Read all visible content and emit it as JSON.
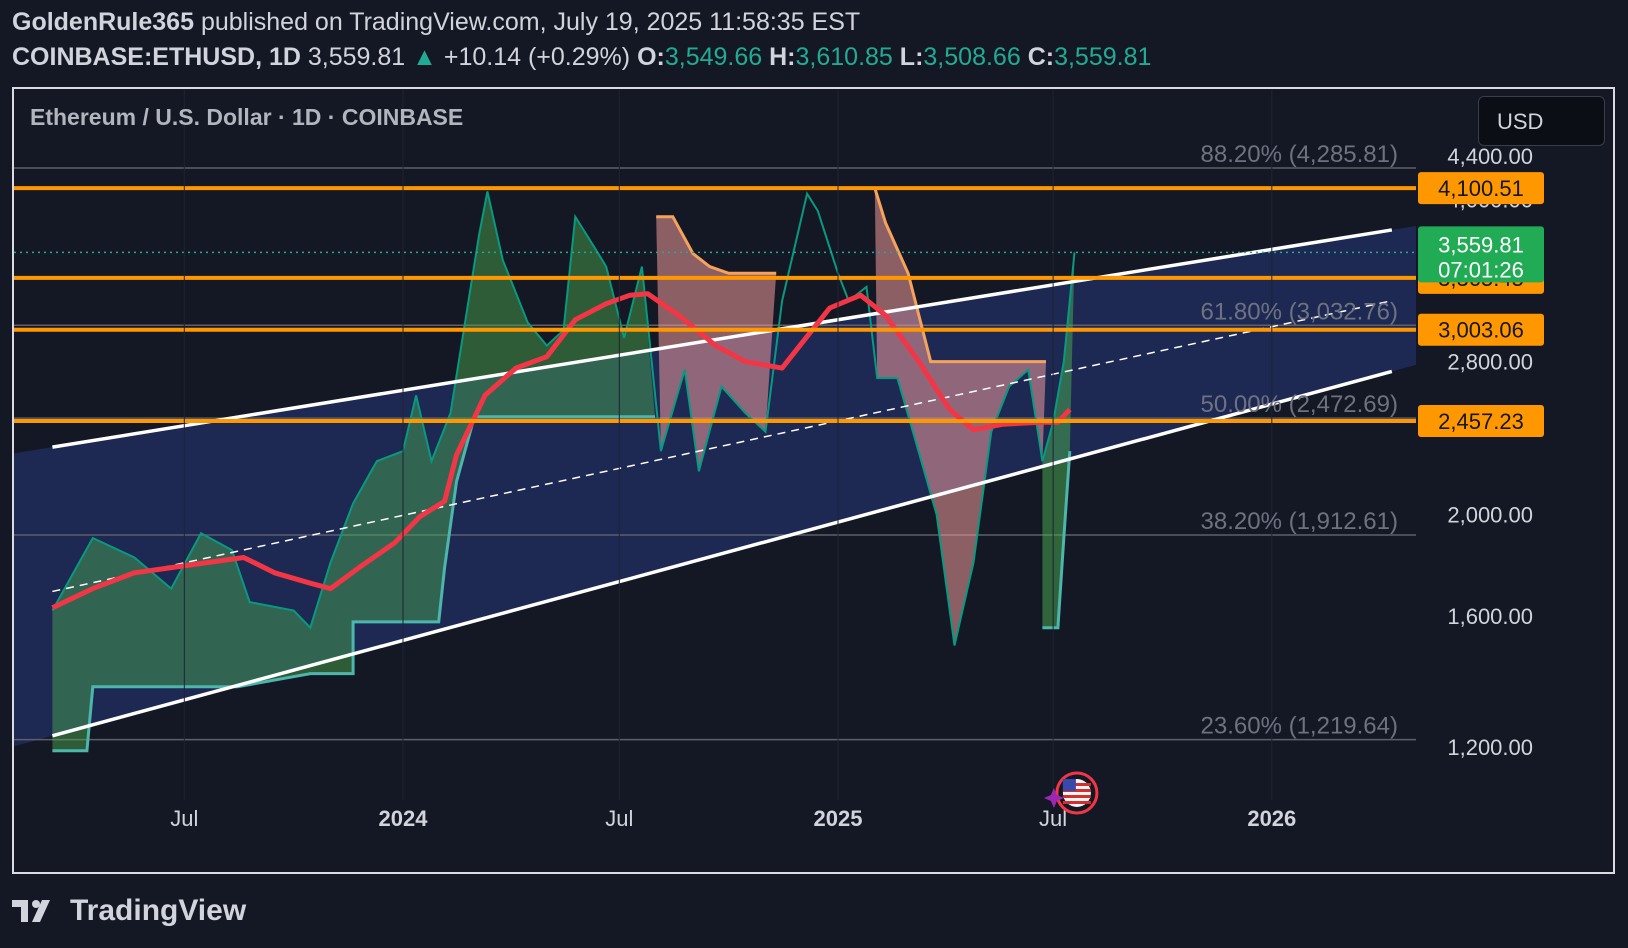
{
  "header": {
    "author": "GoldenRule365",
    "published": "published on TradingView.com, July 19, 2025 11:58:35 EST",
    "symbol": "COINBASE:ETHUSD, 1D",
    "last": "3,559.81",
    "change": "+10.14 (+0.29%)",
    "o_label": "O:",
    "o": "3,549.66",
    "h_label": "H:",
    "h": "3,610.85",
    "l_label": "L:",
    "l": "3,508.66",
    "c_label": "C:",
    "c": "3,559.81"
  },
  "chart_title": "Ethereum / U.S. Dollar · 1D · COINBASE",
  "currency_button": "USD",
  "footer": {
    "brand": "TradingView",
    "logo_icon": "tradingview-logo-icon"
  },
  "colors": {
    "background": "#141824",
    "horizontal_levels": "#ff9800",
    "channel_fill": "#1e2d5c",
    "channel_lines": "#ffffff",
    "moving_average": "#f23645",
    "supertrend_up": "#4caf50",
    "supertrend_down": "#ef9a9a",
    "candle_up": "#089981",
    "candle_down": "#f23645"
  },
  "chart_data": {
    "type": "line",
    "x_ticks": [
      {
        "label": "Jul",
        "bold": false,
        "date": "2023-07-01"
      },
      {
        "label": "2024",
        "bold": true,
        "date": "2024-01-01"
      },
      {
        "label": "Jul",
        "bold": false,
        "date": "2024-07-01"
      },
      {
        "label": "2025",
        "bold": true,
        "date": "2025-01-01"
      },
      {
        "label": "Jul",
        "bold": false,
        "date": "2025-07-01"
      },
      {
        "label": "2026",
        "bold": true,
        "date": "2026-01-01"
      }
    ],
    "y_scale": "log",
    "y_ticks": [
      "4,400.00",
      "4,000.00",
      "2,800.00",
      "2,000.00",
      "1,600.00",
      "1,200.00"
    ],
    "y_tick_values": [
      4400,
      4000,
      2800,
      2000,
      1600,
      1200
    ],
    "fib_levels": [
      {
        "label": "88.20% (4,285.81)",
        "value": 4285.81
      },
      {
        "label": "61.80% (3,032.76)",
        "value": 3032.76
      },
      {
        "label": "50.00% (2,472.69)",
        "value": 2472.69
      },
      {
        "label": "38.20% (1,912.61)",
        "value": 1912.61
      },
      {
        "label": "23.60% (1,219.64)",
        "value": 1219.64
      }
    ],
    "horizontal_levels": [
      {
        "label": "4,100.51",
        "value": 4100.51
      },
      {
        "label": "3,365.45",
        "value": 3365.45
      },
      {
        "label": "3,003.06",
        "value": 3003.06
      },
      {
        "label": "2,457.23",
        "value": 2457.23
      }
    ],
    "last_price": {
      "label": "3,559.81",
      "countdown": "07:01:26",
      "value": 3559.81
    },
    "channel": {
      "upper": [
        {
          "date": "2023-03-12",
          "value": 2320
        },
        {
          "date": "2026-04-12",
          "value": 3740
        }
      ],
      "lower": [
        {
          "date": "2023-03-12",
          "value": 1230
        },
        {
          "date": "2026-04-12",
          "value": 2740
        }
      ]
    },
    "series": [
      {
        "label": "price",
        "points": [
          [
            "2023-03-12",
            1620
          ],
          [
            "2023-04-15",
            1900
          ],
          [
            "2023-05-20",
            1820
          ],
          [
            "2023-06-20",
            1700
          ],
          [
            "2023-07-15",
            1920
          ],
          [
            "2023-08-10",
            1850
          ],
          [
            "2023-08-25",
            1650
          ],
          [
            "2023-10-01",
            1620
          ],
          [
            "2023-10-15",
            1560
          ],
          [
            "2023-11-01",
            1800
          ],
          [
            "2023-11-20",
            2050
          ],
          [
            "2023-12-10",
            2250
          ],
          [
            "2024-01-01",
            2300
          ],
          [
            "2024-01-12",
            2600
          ],
          [
            "2024-01-25",
            2250
          ],
          [
            "2024-02-10",
            2500
          ],
          [
            "2024-03-05",
            3700
          ],
          [
            "2024-03-12",
            4070
          ],
          [
            "2024-03-25",
            3500
          ],
          [
            "2024-04-15",
            3050
          ],
          [
            "2024-05-01",
            2900
          ],
          [
            "2024-05-15",
            3000
          ],
          [
            "2024-05-25",
            3850
          ],
          [
            "2024-06-10",
            3600
          ],
          [
            "2024-06-20",
            3450
          ],
          [
            "2024-07-05",
            2950
          ],
          [
            "2024-07-20",
            3450
          ],
          [
            "2024-08-05",
            2300
          ],
          [
            "2024-08-25",
            2750
          ],
          [
            "2024-09-06",
            2200
          ],
          [
            "2024-09-25",
            2650
          ],
          [
            "2024-10-15",
            2500
          ],
          [
            "2024-11-01",
            2400
          ],
          [
            "2024-11-15",
            3200
          ],
          [
            "2024-12-06",
            4050
          ],
          [
            "2024-12-15",
            3900
          ],
          [
            "2025-01-01",
            3400
          ],
          [
            "2025-01-10",
            3200
          ],
          [
            "2025-01-25",
            3300
          ],
          [
            "2025-02-03",
            2700
          ],
          [
            "2025-02-20",
            2700
          ],
          [
            "2025-03-05",
            2400
          ],
          [
            "2025-03-25",
            2000
          ],
          [
            "2025-04-09",
            1500
          ],
          [
            "2025-04-25",
            1800
          ],
          [
            "2025-05-10",
            2400
          ],
          [
            "2025-05-25",
            2650
          ],
          [
            "2025-06-10",
            2750
          ],
          [
            "2025-06-22",
            2250
          ],
          [
            "2025-07-01",
            2450
          ],
          [
            "2025-07-10",
            2800
          ],
          [
            "2025-07-19",
            3559.81
          ]
        ]
      },
      {
        "label": "moving-average",
        "points": [
          [
            "2023-03-12",
            1630
          ],
          [
            "2023-04-15",
            1700
          ],
          [
            "2023-05-20",
            1760
          ],
          [
            "2023-06-20",
            1780
          ],
          [
            "2023-07-20",
            1800
          ],
          [
            "2023-08-20",
            1820
          ],
          [
            "2023-09-15",
            1760
          ],
          [
            "2023-10-15",
            1720
          ],
          [
            "2023-11-01",
            1700
          ],
          [
            "2023-11-25",
            1780
          ],
          [
            "2023-12-25",
            1880
          ],
          [
            "2024-01-15",
            1990
          ],
          [
            "2024-02-05",
            2060
          ],
          [
            "2024-02-15",
            2280
          ],
          [
            "2024-03-10",
            2600
          ],
          [
            "2024-04-05",
            2760
          ],
          [
            "2024-05-01",
            2830
          ],
          [
            "2024-05-25",
            3070
          ],
          [
            "2024-06-20",
            3180
          ],
          [
            "2024-07-10",
            3240
          ],
          [
            "2024-07-25",
            3250
          ],
          [
            "2024-08-20",
            3100
          ],
          [
            "2024-09-20",
            2900
          ],
          [
            "2024-10-15",
            2800
          ],
          [
            "2024-11-15",
            2760
          ],
          [
            "2024-12-05",
            2950
          ],
          [
            "2024-12-25",
            3150
          ],
          [
            "2025-01-20",
            3240
          ],
          [
            "2025-02-10",
            3100
          ],
          [
            "2025-03-10",
            2800
          ],
          [
            "2025-04-05",
            2520
          ],
          [
            "2025-04-25",
            2410
          ],
          [
            "2025-05-20",
            2440
          ],
          [
            "2025-06-20",
            2450
          ],
          [
            "2025-07-05",
            2450
          ],
          [
            "2025-07-15",
            2520
          ]
        ]
      },
      {
        "label": "supertrend-up",
        "points": [
          [
            "2023-03-12",
            1190
          ],
          [
            "2023-04-10",
            1190
          ],
          [
            "2023-04-15",
            1370
          ],
          [
            "2023-07-01",
            1370
          ],
          [
            "2023-08-15",
            1370
          ],
          [
            "2023-10-15",
            1410
          ],
          [
            "2023-11-20",
            1410
          ],
          [
            "2023-11-20",
            1580
          ],
          [
            "2024-01-01",
            1580
          ],
          [
            "2024-01-31",
            1580
          ],
          [
            "2024-02-05",
            1780
          ],
          [
            "2024-02-15",
            2150
          ],
          [
            "2024-03-01",
            2480
          ],
          [
            "2024-07-31",
            2480
          ]
        ]
      },
      {
        "label": "supertrend-down",
        "points": [
          [
            "2024-08-01",
            3850
          ],
          [
            "2024-08-15",
            3850
          ],
          [
            "2024-09-01",
            3550
          ],
          [
            "2024-09-15",
            3450
          ],
          [
            "2024-10-01",
            3400
          ],
          [
            "2024-11-10",
            3400
          ]
        ]
      },
      {
        "label": "supertrend-down-2",
        "points": [
          [
            "2025-02-01",
            4100
          ],
          [
            "2025-02-10",
            3800
          ],
          [
            "2025-03-01",
            3400
          ],
          [
            "2025-03-20",
            2800
          ],
          [
            "2025-05-10",
            2800
          ],
          [
            "2025-06-25",
            2800
          ]
        ]
      }
    ]
  }
}
